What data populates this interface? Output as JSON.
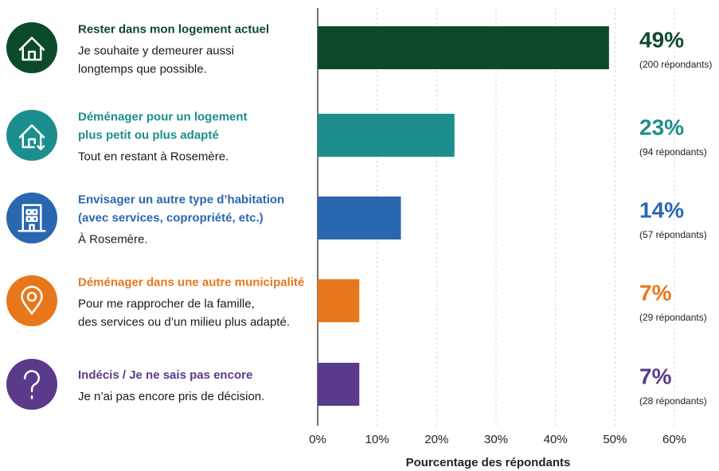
{
  "chart_data": {
    "type": "bar",
    "orientation": "horizontal",
    "categories": [
      "Rester dans mon logement actuel",
      "Déménager pour un logement\nplus petit ou plus adapté",
      "Envisager un autre type d’habitation\n(avec services, copropriété, etc.)",
      "Déménager dans une autre municipalité",
      "Indécis / Je ne sais pas encore"
    ],
    "descriptions": [
      "Je souhaite y demeurer aussi\nlongtemps que possible.",
      "Tout en restant à Rosemère.",
      "À Rosemère.",
      "Pour me rapprocher de la famille,\ndes services ou d’un milieu plus adapté.",
      "Je n’ai pas encore pris de décision."
    ],
    "values": [
      49,
      23,
      14,
      7,
      7
    ],
    "value_labels": [
      "49%",
      "23%",
      "14%",
      "7%",
      "7%"
    ],
    "respondent_labels": [
      "(200 répondants)",
      "(94 répondants)",
      "(57 répondants)",
      "(29 répondants)",
      "(28 répondants)"
    ],
    "colors": [
      "#0d4a2b",
      "#1c8e8e",
      "#2a67b1",
      "#e8771b",
      "#5a3a8b"
    ],
    "xlabel": "Pourcentage des répondants",
    "xlim": [
      0,
      60
    ],
    "xticks": [
      {
        "value": 0,
        "label": "0%"
      },
      {
        "value": 10,
        "label": "10%"
      },
      {
        "value": 20,
        "label": "20%"
      },
      {
        "value": 30,
        "label": "30%"
      },
      {
        "value": 40,
        "label": "40%"
      },
      {
        "value": 50,
        "label": "50%"
      },
      {
        "value": 60,
        "label": "60%"
      }
    ],
    "grid": true
  }
}
